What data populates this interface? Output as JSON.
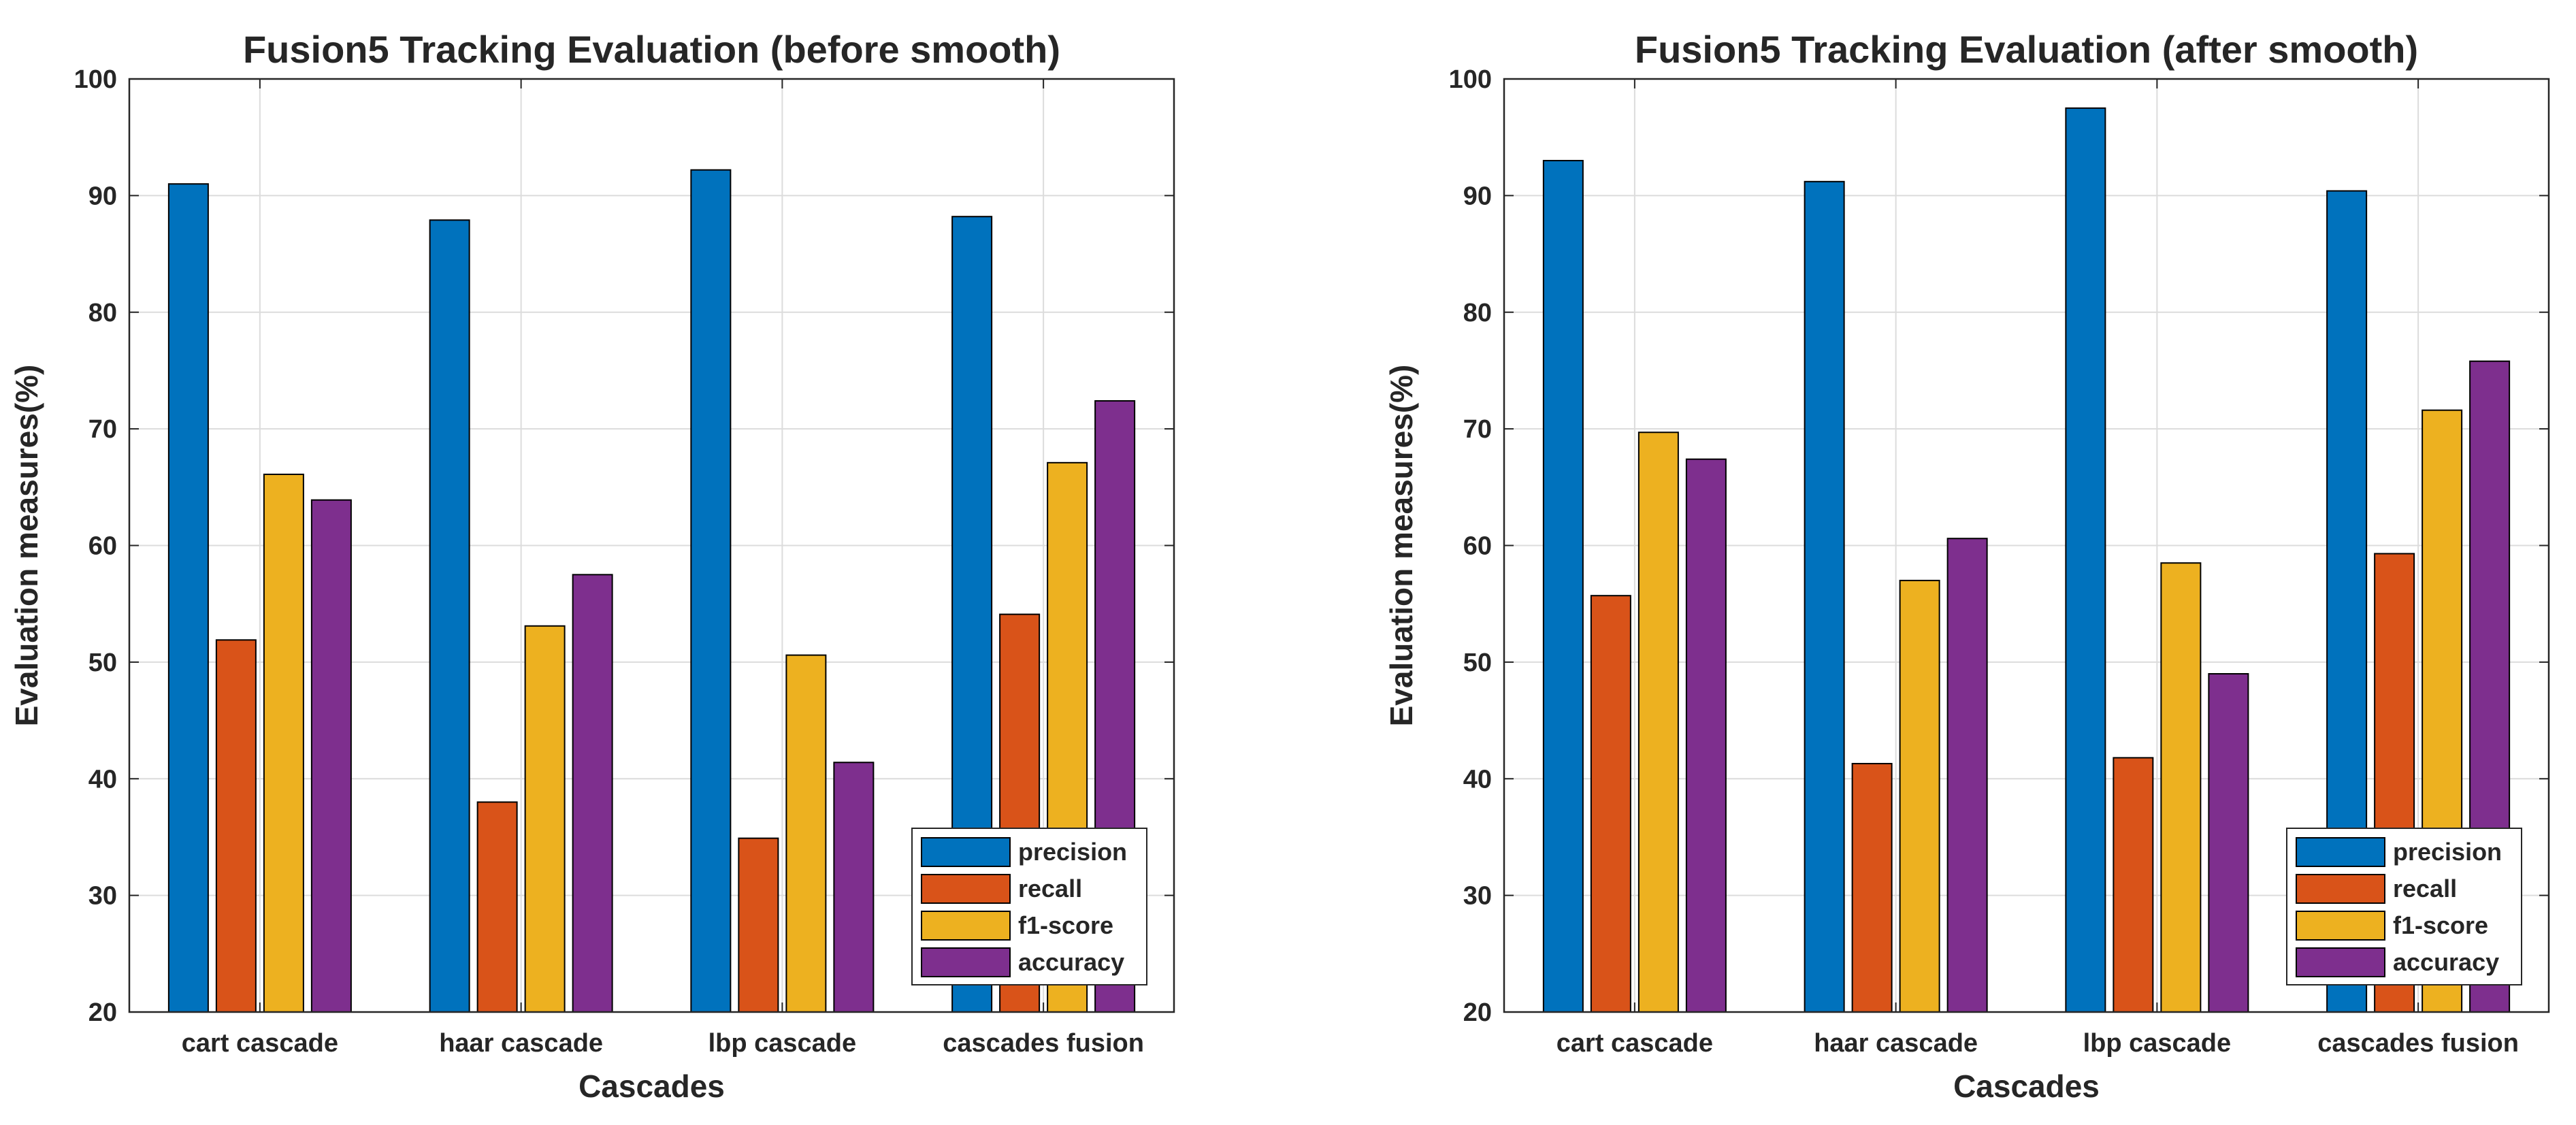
{
  "chart_data": [
    {
      "type": "bar",
      "title": "Fusion5 Tracking Evaluation (before smooth)",
      "xlabel": "Cascades",
      "ylabel": "Evaluation measures(%)",
      "ylim": [
        20,
        100
      ],
      "yticks": [
        20,
        30,
        40,
        50,
        60,
        70,
        80,
        90,
        100
      ],
      "grid": true,
      "legend_location": "bottom-right",
      "categories": [
        "cart cascade",
        "haar cascade",
        "lbp cascade",
        "cascades fusion"
      ],
      "series": [
        {
          "name": "precision",
          "color": "#0072BD",
          "values": [
            91.0,
            87.9,
            92.2,
            88.2
          ]
        },
        {
          "name": "recall",
          "color": "#D95319",
          "values": [
            51.9,
            38.0,
            34.9,
            54.1
          ]
        },
        {
          "name": "f1-score",
          "color": "#EDB120",
          "values": [
            66.1,
            53.1,
            50.6,
            67.1
          ]
        },
        {
          "name": "accuracy",
          "color": "#7E2F8E",
          "values": [
            63.9,
            57.5,
            41.4,
            72.4
          ]
        }
      ]
    },
    {
      "type": "bar",
      "title": "Fusion5 Tracking Evaluation (after smooth)",
      "xlabel": "Cascades",
      "ylabel": "Evaluation measures(%)",
      "ylim": [
        20,
        100
      ],
      "yticks": [
        20,
        30,
        40,
        50,
        60,
        70,
        80,
        90,
        100
      ],
      "grid": true,
      "legend_location": "bottom-right",
      "categories": [
        "cart cascade",
        "haar cascade",
        "lbp cascade",
        "cascades fusion"
      ],
      "series": [
        {
          "name": "precision",
          "color": "#0072BD",
          "values": [
            93.0,
            91.2,
            97.5,
            90.4
          ]
        },
        {
          "name": "recall",
          "color": "#D95319",
          "values": [
            55.7,
            41.3,
            41.8,
            59.3
          ]
        },
        {
          "name": "f1-score",
          "color": "#EDB120",
          "values": [
            69.7,
            57.0,
            58.5,
            71.6
          ]
        },
        {
          "name": "accuracy",
          "color": "#7E2F8E",
          "values": [
            67.4,
            60.6,
            49.0,
            75.8
          ]
        }
      ]
    }
  ]
}
